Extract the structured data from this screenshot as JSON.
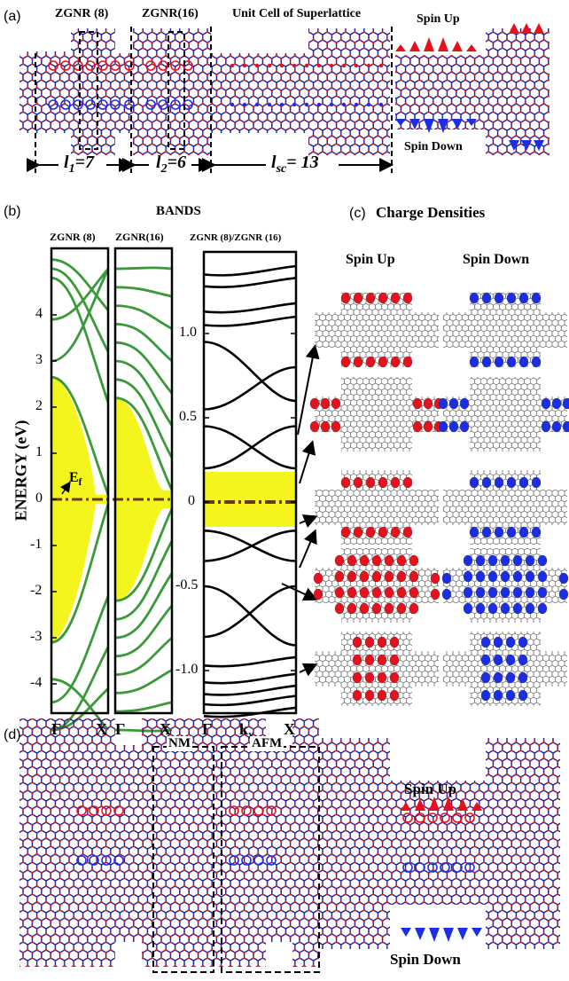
{
  "panel_a": {
    "label": "(a)",
    "title_zgnr8": "ZGNR (8)",
    "title_zgnr16": "ZGNR(16)",
    "title_unit_cell": "Unit Cell of Superlattice",
    "spin_up": "Spin Up",
    "spin_down": "Spin Down",
    "l1_sym": "l",
    "l1_sub": "1",
    "l1_val": "=7",
    "l2_sym": "l",
    "l2_sub": "2",
    "l2_val": "=6",
    "lsc_sym": "l",
    "lsc_sub": "sc",
    "lsc_val": "= 13"
  },
  "panel_b": {
    "label": "(b)",
    "title": "BANDS",
    "zgnr8_title": "ZGNR (8)",
    "zgnr16_title": "ZGNR(16)",
    "super_title": "ZGNR (8)/ZGNR (16)",
    "ylabel": "ENERGY (eV)",
    "fermi_label": "E",
    "fermi_sub": "f",
    "left_ticks": [
      "4",
      "3",
      "2",
      "1",
      "0",
      "-1",
      "-2",
      "-3",
      "-4"
    ],
    "right_ticks": [
      "1.0",
      "0.5",
      "0",
      "-0.5",
      "-1.0"
    ],
    "x_gamma": "Γ",
    "x_x": "X",
    "x_kx": "k",
    "x_kx_sub": "x"
  },
  "panel_c": {
    "label": "(c)",
    "title": "Charge Densities",
    "spin_up": "Spin Up",
    "spin_down": "Spin Down"
  },
  "panel_d": {
    "label": "(d)",
    "nm": "NM",
    "afm": "AFM",
    "spin_up": "Spin Up",
    "spin_down": "Spin Down"
  },
  "colors": {
    "band_green": "#3a9a3a",
    "gap_yellow": "#f5f51e",
    "spin_up_red": "#e8101a",
    "spin_down_blue": "#1a2ee8",
    "fermi_brown": "#6b3a1a",
    "lattice_blue": "#1a1a90",
    "lattice_red": "#d0202a"
  },
  "chart_data": [
    {
      "type": "line",
      "title": "ZGNR (8)",
      "ylabel": "ENERGY (eV)",
      "x": [
        "Γ",
        "X"
      ],
      "ylim": [
        -5,
        5
      ],
      "fermi_level": 0
    },
    {
      "type": "line",
      "title": "ZGNR(16)",
      "x": [
        "Γ",
        "X"
      ],
      "ylim": [
        -5,
        5
      ],
      "fermi_level": 0
    },
    {
      "type": "line",
      "title": "ZGNR (8)/ZGNR (16)",
      "x": [
        "Γ",
        "k_x",
        "X"
      ],
      "ylim": [
        -1.35,
        1.4
      ],
      "gap_band": [
        -0.17,
        0.17
      ],
      "fermi_level": 0
    }
  ]
}
